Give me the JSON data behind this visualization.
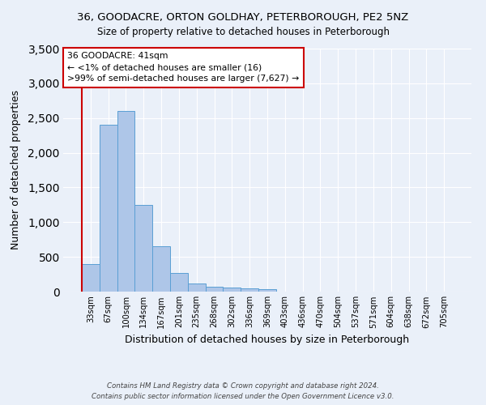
{
  "title": "36, GOODACRE, ORTON GOLDHAY, PETERBOROUGH, PE2 5NZ",
  "subtitle": "Size of property relative to detached houses in Peterborough",
  "xlabel": "Distribution of detached houses by size in Peterborough",
  "ylabel": "Number of detached properties",
  "footnote1": "Contains HM Land Registry data © Crown copyright and database right 2024.",
  "footnote2": "Contains public sector information licensed under the Open Government Licence v3.0.",
  "categories": [
    "33sqm",
    "67sqm",
    "100sqm",
    "134sqm",
    "167sqm",
    "201sqm",
    "235sqm",
    "268sqm",
    "302sqm",
    "336sqm",
    "369sqm",
    "403sqm",
    "436sqm",
    "470sqm",
    "504sqm",
    "537sqm",
    "571sqm",
    "604sqm",
    "638sqm",
    "672sqm",
    "705sqm"
  ],
  "values": [
    400,
    2400,
    2600,
    1250,
    650,
    265,
    115,
    65,
    55,
    45,
    35,
    0,
    0,
    0,
    0,
    0,
    0,
    0,
    0,
    0,
    0
  ],
  "bar_color": "#aec6e8",
  "bar_edge_color": "#5a9fd4",
  "background_color": "#eaf0f9",
  "grid_color": "#ffffff",
  "vline_color": "#cc0000",
  "annotation_text": "36 GOODACRE: 41sqm\n← <1% of detached houses are smaller (16)\n>99% of semi-detached houses are larger (7,627) →",
  "annotation_box_color": "#ffffff",
  "annotation_box_edge": "#cc0000",
  "ylim": [
    0,
    3500
  ],
  "yticks": [
    0,
    500,
    1000,
    1500,
    2000,
    2500,
    3000,
    3500
  ]
}
